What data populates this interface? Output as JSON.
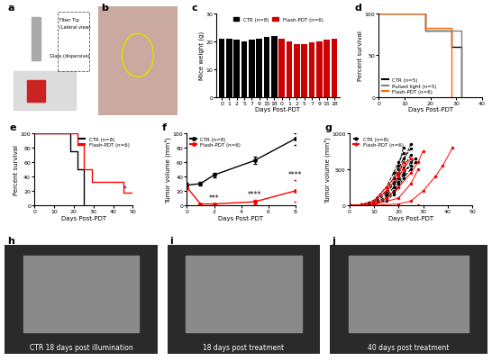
{
  "chart_data": [
    {
      "panel": "c",
      "type": "bar",
      "y_label": "Mice weight (g)",
      "x_label": "Days Post-PDT",
      "categories": [
        "0",
        "1",
        "2",
        "5",
        "7",
        "9",
        "15",
        "18",
        "0",
        "1",
        "2",
        "5",
        "7",
        "9",
        "15",
        "18"
      ],
      "series": [
        {
          "name": "CTR (n=8)",
          "color": "#000000",
          "values": [
            21,
            21,
            20.5,
            20,
            20.5,
            21,
            21.5,
            22,
            null,
            null,
            null,
            null,
            null,
            null,
            null,
            null
          ]
        },
        {
          "name": "Flash-PDT (n=6)",
          "color": "#cc0000",
          "values": [
            null,
            null,
            null,
            null,
            null,
            null,
            null,
            null,
            21,
            20,
            19,
            19,
            19.5,
            20,
            20.5,
            21
          ]
        }
      ],
      "ylim": [
        0,
        30
      ],
      "yticks": [
        0,
        10,
        20,
        30
      ],
      "legend": "upper center"
    },
    {
      "panel": "d",
      "type": "line",
      "line_style": "steps",
      "y_label": "Percent survival",
      "x_label": "Days Post-PDT",
      "series": [
        {
          "name": "CTR (n=5)",
          "color": "#000000",
          "x": [
            0,
            18,
            28,
            32
          ],
          "values": [
            100,
            80,
            60,
            0
          ]
        },
        {
          "name": "Pulsed light (n=5)",
          "color": "#808080",
          "x": [
            0,
            18,
            32
          ],
          "values": [
            100,
            80,
            0
          ]
        },
        {
          "name": "Flash-PDT (n=6)",
          "color": "#ff6600",
          "x": [
            0,
            18,
            28
          ],
          "values": [
            100,
            83,
            0
          ]
        }
      ],
      "xlim": [
        0,
        40
      ],
      "xticks": [
        0,
        10,
        20,
        30,
        40
      ],
      "ylim": [
        0,
        100
      ],
      "yticks": [
        0,
        50,
        100
      ],
      "legend": "lower left"
    },
    {
      "panel": "e",
      "type": "line",
      "line_style": "steps",
      "y_label": "Percent survival",
      "x_label": "Days Post-PDT",
      "series": [
        {
          "name": "CTR (n=8)",
          "color": "#000000",
          "x": [
            0,
            18,
            22,
            25
          ],
          "values": [
            100,
            75,
            50,
            0
          ]
        },
        {
          "name": "Flash-PDT (n=6)",
          "color": "#ff0000",
          "x": [
            0,
            22,
            25,
            29,
            45,
            50
          ],
          "values": [
            100,
            83,
            50,
            33,
            17,
            17
          ]
        }
      ],
      "annotations": [
        {
          "x": 46,
          "y": 20,
          "text": "*"
        }
      ],
      "xlim": [
        0,
        50
      ],
      "xticks": [
        0,
        10,
        20,
        30,
        40,
        50
      ],
      "ylim": [
        0,
        100
      ],
      "yticks": [
        0,
        20,
        40,
        60,
        80,
        100
      ],
      "legend": "upper right"
    },
    {
      "panel": "f",
      "type": "line",
      "marker": "circle",
      "y_label": "Tumor volume (mm³)",
      "x_label": "Days Post-PDT",
      "series": [
        {
          "name": "CTR (n=8)",
          "color": "#000000",
          "x": [
            0,
            1,
            2,
            5,
            8
          ],
          "values": [
            28,
            30,
            42,
            62,
            92
          ],
          "errors": [
            3,
            3,
            3,
            5,
            8
          ]
        },
        {
          "name": "Flash-PDT (n=6)",
          "color": "#ff0000",
          "x": [
            0,
            1,
            2,
            5,
            8
          ],
          "values": [
            25,
            2,
            2,
            5,
            20
          ],
          "errors": [
            2,
            1,
            1,
            3,
            15
          ]
        }
      ],
      "annotations": [
        {
          "x": 2,
          "y": 8,
          "text": "***"
        },
        {
          "x": 5,
          "y": 12,
          "text": "****"
        },
        {
          "x": 8,
          "y": 40,
          "text": "****"
        }
      ],
      "xlim": [
        0,
        8
      ],
      "xticks": [
        0,
        2,
        4,
        6,
        8
      ],
      "ylim": [
        0,
        100
      ],
      "yticks": [
        0,
        20,
        40,
        60,
        80,
        100
      ],
      "legend": "upper left"
    },
    {
      "panel": "g",
      "type": "line",
      "marker": "circle",
      "y_label": "Tumor volume (mm³)",
      "x_label": "Days Post-PDT",
      "series": [
        {
          "name": "CTR (n=8)",
          "color": "#000000",
          "line_style": "dashed",
          "curves": [
            {
              "x": [
                0,
                5,
                10,
                15,
                18,
                20,
                22
              ],
              "values": [
                0,
                10,
                60,
                200,
                380,
                550,
                800
              ]
            },
            {
              "x": [
                0,
                5,
                10,
                15,
                18,
                20,
                22,
                25
              ],
              "values": [
                0,
                5,
                40,
                150,
                300,
                420,
                600,
                850
              ]
            },
            {
              "x": [
                0,
                5,
                10,
                15,
                18,
                20,
                22,
                25
              ],
              "values": [
                0,
                5,
                30,
                120,
                250,
                380,
                520,
                700
              ]
            },
            {
              "x": [
                0,
                5,
                10,
                15,
                18,
                20,
                22,
                25,
                27
              ],
              "values": [
                0,
                5,
                20,
                90,
                180,
                300,
                420,
                600,
                650
              ]
            },
            {
              "x": [
                0,
                5,
                10,
                15,
                18,
                20,
                22,
                25
              ],
              "values": [
                0,
                8,
                50,
                180,
                320,
                500,
                650,
                780
              ]
            },
            {
              "x": [
                0,
                5,
                10,
                15,
                18,
                20,
                22
              ],
              "values": [
                0,
                10,
                70,
                250,
                450,
                600,
                720
              ]
            },
            {
              "x": [
                0,
                5,
                10,
                15,
                18,
                20,
                22,
                25
              ],
              "values": [
                0,
                5,
                25,
                100,
                200,
                330,
                450,
                550
              ]
            },
            {
              "x": [
                0,
                5,
                10,
                15,
                18,
                20,
                22,
                25,
                27
              ],
              "values": [
                0,
                3,
                15,
                70,
                150,
                250,
                380,
                500,
                600
              ]
            }
          ]
        },
        {
          "name": "Flash-PDT (n=6)",
          "color": "#ff0000",
          "line_style": "solid",
          "curves": [
            {
              "x": [
                0,
                5,
                10,
                15,
                20,
                25,
                28,
                30
              ],
              "values": [
                0,
                0,
                20,
                100,
                250,
                450,
                600,
                750
              ]
            },
            {
              "x": [
                0,
                10,
                20,
                25,
                30,
                35,
                38,
                42
              ],
              "values": [
                0,
                0,
                20,
                60,
                200,
                400,
                550,
                800
              ]
            },
            {
              "x": [
                0,
                5,
                10,
                15,
                20,
                22,
                25
              ],
              "values": [
                0,
                10,
                50,
                200,
                400,
                500,
                650
              ]
            },
            {
              "x": [
                0,
                10,
                20,
                28
              ],
              "values": [
                0,
                0,
                0,
                0
              ]
            },
            {
              "x": [
                0,
                5,
                10,
                15,
                20,
                22
              ],
              "values": [
                0,
                5,
                60,
                250,
                450,
                600
              ]
            },
            {
              "x": [
                0,
                10,
                20,
                25,
                28
              ],
              "values": [
                0,
                10,
                100,
                300,
                500
              ]
            }
          ]
        }
      ],
      "xlim": [
        0,
        50
      ],
      "xticks": [
        0,
        10,
        20,
        30,
        40,
        50
      ],
      "ylim": [
        0,
        1000
      ],
      "yticks": [
        0,
        500,
        1000
      ],
      "legend": "upper left"
    }
  ],
  "images": [
    {
      "panel": "a",
      "texts": [
        "Fiber Tip",
        "(Lateral view)",
        "Glass (dispersive)"
      ]
    },
    {
      "panel": "b",
      "texts": []
    },
    {
      "panel": "h",
      "texts": [
        "CTR 18 days post illumination"
      ]
    },
    {
      "panel": "i",
      "texts": [
        "18 days post treatment"
      ]
    },
    {
      "panel": "j",
      "texts": [
        "40 days post treatment"
      ]
    }
  ]
}
